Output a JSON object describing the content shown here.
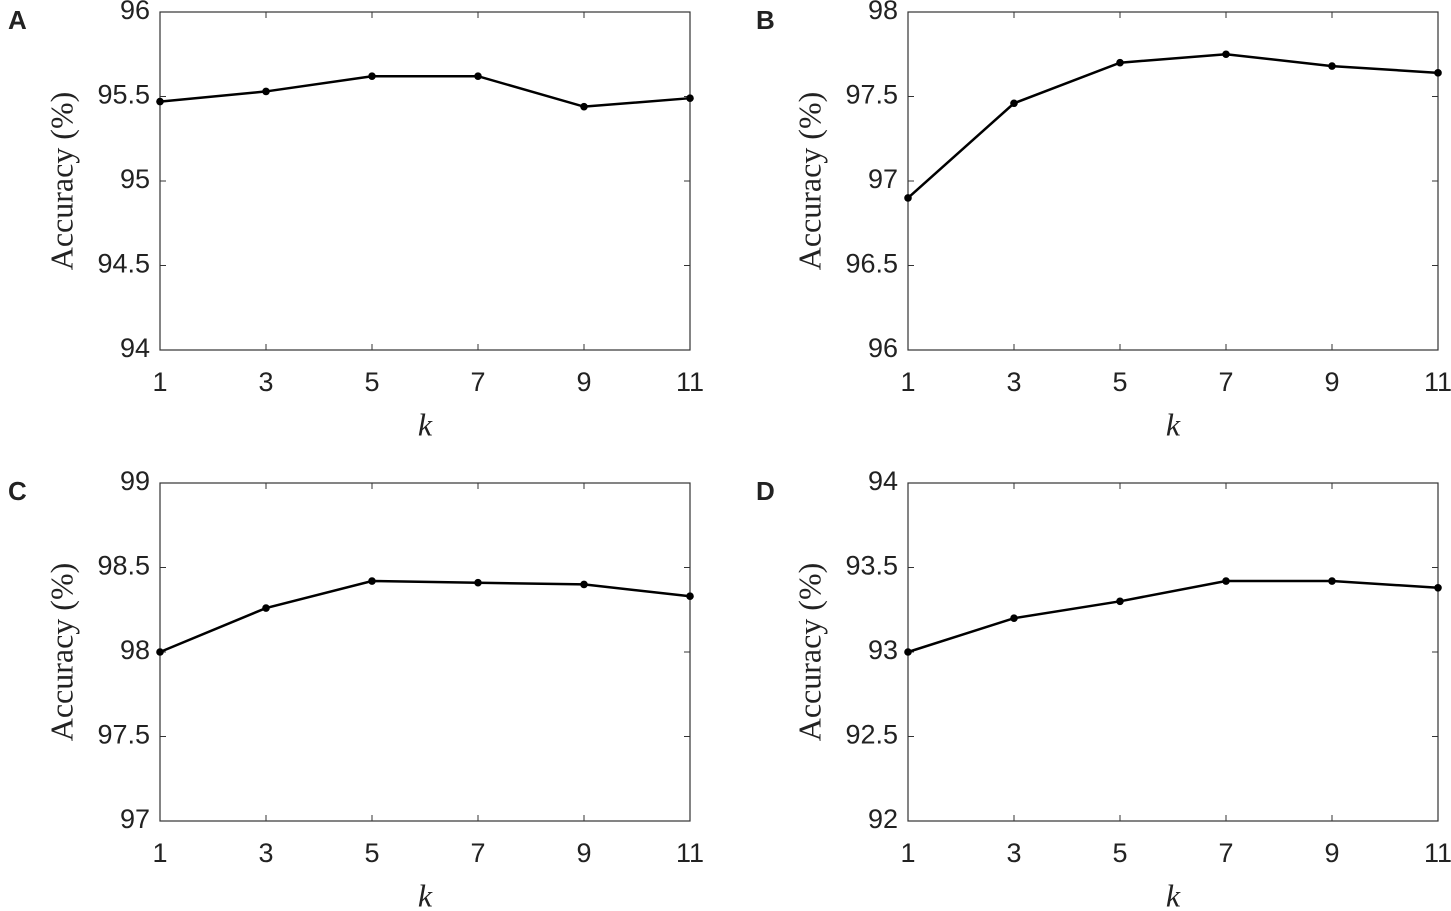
{
  "chart_data": [
    {
      "type": "line",
      "panel": "A",
      "xlabel": "k",
      "ylabel": "Accuracy (%)",
      "x": [
        1,
        3,
        5,
        7,
        9,
        11
      ],
      "values": [
        95.47,
        95.53,
        95.62,
        95.62,
        95.44,
        95.49
      ],
      "color": "#000000",
      "xlim": [
        1,
        11
      ],
      "xticks": [
        1,
        3,
        5,
        7,
        9,
        11
      ],
      "ylim": [
        94,
        96
      ],
      "yticks": [
        94,
        94.5,
        95,
        95.5,
        96
      ]
    },
    {
      "type": "line",
      "panel": "B",
      "xlabel": "k",
      "ylabel": "Accuracy (%)",
      "x": [
        1,
        3,
        5,
        7,
        9,
        11
      ],
      "values": [
        96.9,
        97.46,
        97.7,
        97.75,
        97.68,
        97.64
      ],
      "color": "#000000",
      "xlim": [
        1,
        11
      ],
      "xticks": [
        1,
        3,
        5,
        7,
        9,
        11
      ],
      "ylim": [
        96,
        98
      ],
      "yticks": [
        96,
        96.5,
        97,
        97.5,
        98
      ]
    },
    {
      "type": "line",
      "panel": "C",
      "xlabel": "k",
      "ylabel": "Accuracy (%)",
      "x": [
        1,
        3,
        5,
        7,
        9,
        11
      ],
      "values": [
        98.0,
        98.26,
        98.42,
        98.41,
        98.4,
        98.33
      ],
      "color": "#000000",
      "xlim": [
        1,
        11
      ],
      "xticks": [
        1,
        3,
        5,
        7,
        9,
        11
      ],
      "ylim": [
        97,
        99
      ],
      "yticks": [
        97,
        97.5,
        98,
        98.5,
        99
      ]
    },
    {
      "type": "line",
      "panel": "D",
      "xlabel": "k",
      "ylabel": "Accuracy (%)",
      "x": [
        1,
        3,
        5,
        7,
        9,
        11
      ],
      "values": [
        93.0,
        93.2,
        93.3,
        93.42,
        93.42,
        93.38
      ],
      "color": "#000000",
      "xlim": [
        1,
        11
      ],
      "xticks": [
        1,
        3,
        5,
        7,
        9,
        11
      ],
      "ylim": [
        92,
        94
      ],
      "yticks": [
        92,
        92.5,
        93,
        93.5,
        94
      ]
    }
  ]
}
